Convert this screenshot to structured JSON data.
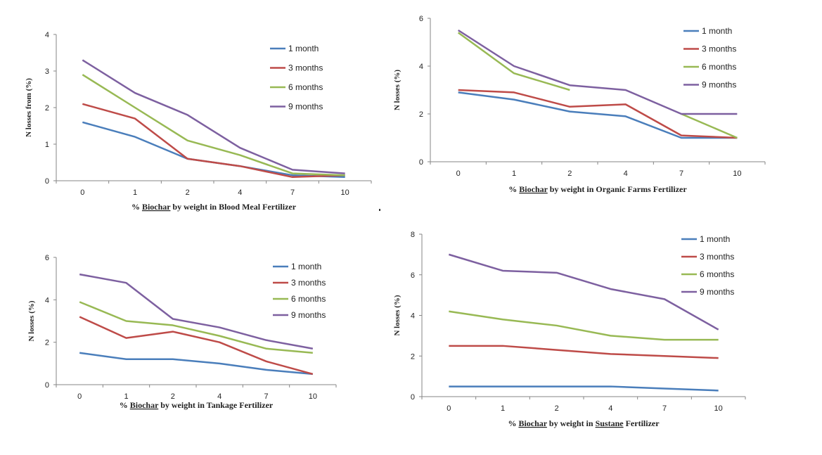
{
  "chart_data": [
    {
      "type": "line",
      "categories": [
        "0",
        "1",
        "2",
        "4",
        "7",
        "10"
      ],
      "xlabel_prefix": "% ",
      "xlabel_underlined": "Biochar",
      "xlabel_suffix": " by weight in Blood Meal Fertilizer",
      "ylabel": "N losses from (%)",
      "ylim": [
        0,
        4
      ],
      "yticks": [
        0,
        1,
        2,
        3,
        4
      ],
      "grid": false,
      "legend_position": "top-right",
      "series": [
        {
          "name": "1 month",
          "color": "#4a7ebb",
          "values": [
            1.6,
            1.2,
            0.6,
            0.4,
            0.15,
            0.1
          ]
        },
        {
          "name": "3 months",
          "color": "#be4b48",
          "values": [
            2.1,
            1.7,
            0.6,
            0.4,
            0.1,
            0.15
          ]
        },
        {
          "name": "6 months",
          "color": "#98b954",
          "values": [
            2.9,
            2.0,
            1.1,
            0.7,
            0.2,
            0.15
          ]
        },
        {
          "name": "9 months",
          "color": "#7d60a0",
          "values": [
            3.3,
            2.4,
            1.8,
            0.9,
            0.3,
            0.2
          ]
        }
      ]
    },
    {
      "type": "line",
      "categories": [
        "0",
        "1",
        "2",
        "4",
        "7",
        "10"
      ],
      "xlabel_prefix": "% ",
      "xlabel_underlined": "Biochar",
      "xlabel_suffix": " by weight in Organic Farms Fertilizer",
      "ylabel": "N losses (%)",
      "ylim": [
        0,
        6
      ],
      "yticks": [
        0,
        2,
        4,
        6
      ],
      "grid": false,
      "legend_position": "top-right",
      "series": [
        {
          "name": "1 month",
          "color": "#4a7ebb",
          "values": [
            2.9,
            2.6,
            2.1,
            1.9,
            1.0,
            1.0
          ]
        },
        {
          "name": "3 months",
          "color": "#be4b48",
          "values": [
            3.0,
            2.9,
            2.3,
            2.4,
            1.1,
            1.0
          ]
        },
        {
          "name": "6 months",
          "color": "#98b954",
          "values": [
            5.4,
            3.7,
            3.0,
            null,
            2.0,
            1.0
          ]
        },
        {
          "name": "9 months",
          "color": "#7d60a0",
          "values": [
            5.5,
            4.0,
            3.2,
            3.0,
            2.0,
            2.0
          ]
        }
      ]
    },
    {
      "type": "line",
      "categories": [
        "0",
        "1",
        "2",
        "4",
        "7",
        "10"
      ],
      "xlabel_prefix": "% ",
      "xlabel_underlined": "Biochar",
      "xlabel_suffix": " by weight in Tankage Fertilizer",
      "ylabel": "N losses (%)",
      "ylim": [
        0,
        6
      ],
      "yticks": [
        0,
        2,
        4,
        6
      ],
      "grid": false,
      "legend_position": "top-right",
      "series": [
        {
          "name": "1 month",
          "color": "#4a7ebb",
          "values": [
            1.5,
            1.2,
            1.2,
            1.0,
            0.7,
            0.5
          ]
        },
        {
          "name": "3 months",
          "color": "#be4b48",
          "values": [
            3.2,
            2.2,
            2.5,
            2.0,
            1.1,
            0.5
          ]
        },
        {
          "name": "6 months",
          "color": "#98b954",
          "values": [
            3.9,
            3.0,
            2.8,
            2.3,
            1.7,
            1.5
          ]
        },
        {
          "name": "9 months",
          "color": "#7d60a0",
          "values": [
            5.2,
            4.8,
            3.1,
            2.7,
            2.1,
            1.7
          ]
        }
      ]
    },
    {
      "type": "line",
      "categories": [
        "0",
        "1",
        "2",
        "4",
        "7",
        "10"
      ],
      "xlabel_prefix": "% ",
      "xlabel_underlined": "Biochar",
      "xlabel_middle": " by weight in ",
      "xlabel_underlined2": "Sustane",
      "xlabel_suffix": " Fertilizer",
      "ylabel": "N losses (%)",
      "ylim": [
        0,
        8
      ],
      "yticks": [
        0,
        2,
        4,
        6,
        8
      ],
      "grid": false,
      "legend_position": "top-right",
      "series": [
        {
          "name": "1 month",
          "color": "#4a7ebb",
          "values": [
            0.5,
            0.5,
            0.5,
            0.5,
            0.4,
            0.3
          ]
        },
        {
          "name": "3 months",
          "color": "#be4b48",
          "values": [
            2.5,
            2.5,
            2.3,
            2.1,
            2.0,
            1.9
          ]
        },
        {
          "name": "6 months",
          "color": "#98b954",
          "values": [
            4.2,
            3.8,
            3.5,
            3.0,
            2.8,
            2.8
          ]
        },
        {
          "name": "9 months",
          "color": "#7d60a0",
          "values": [
            7.0,
            6.2,
            6.1,
            5.3,
            4.8,
            3.3
          ]
        }
      ]
    }
  ]
}
